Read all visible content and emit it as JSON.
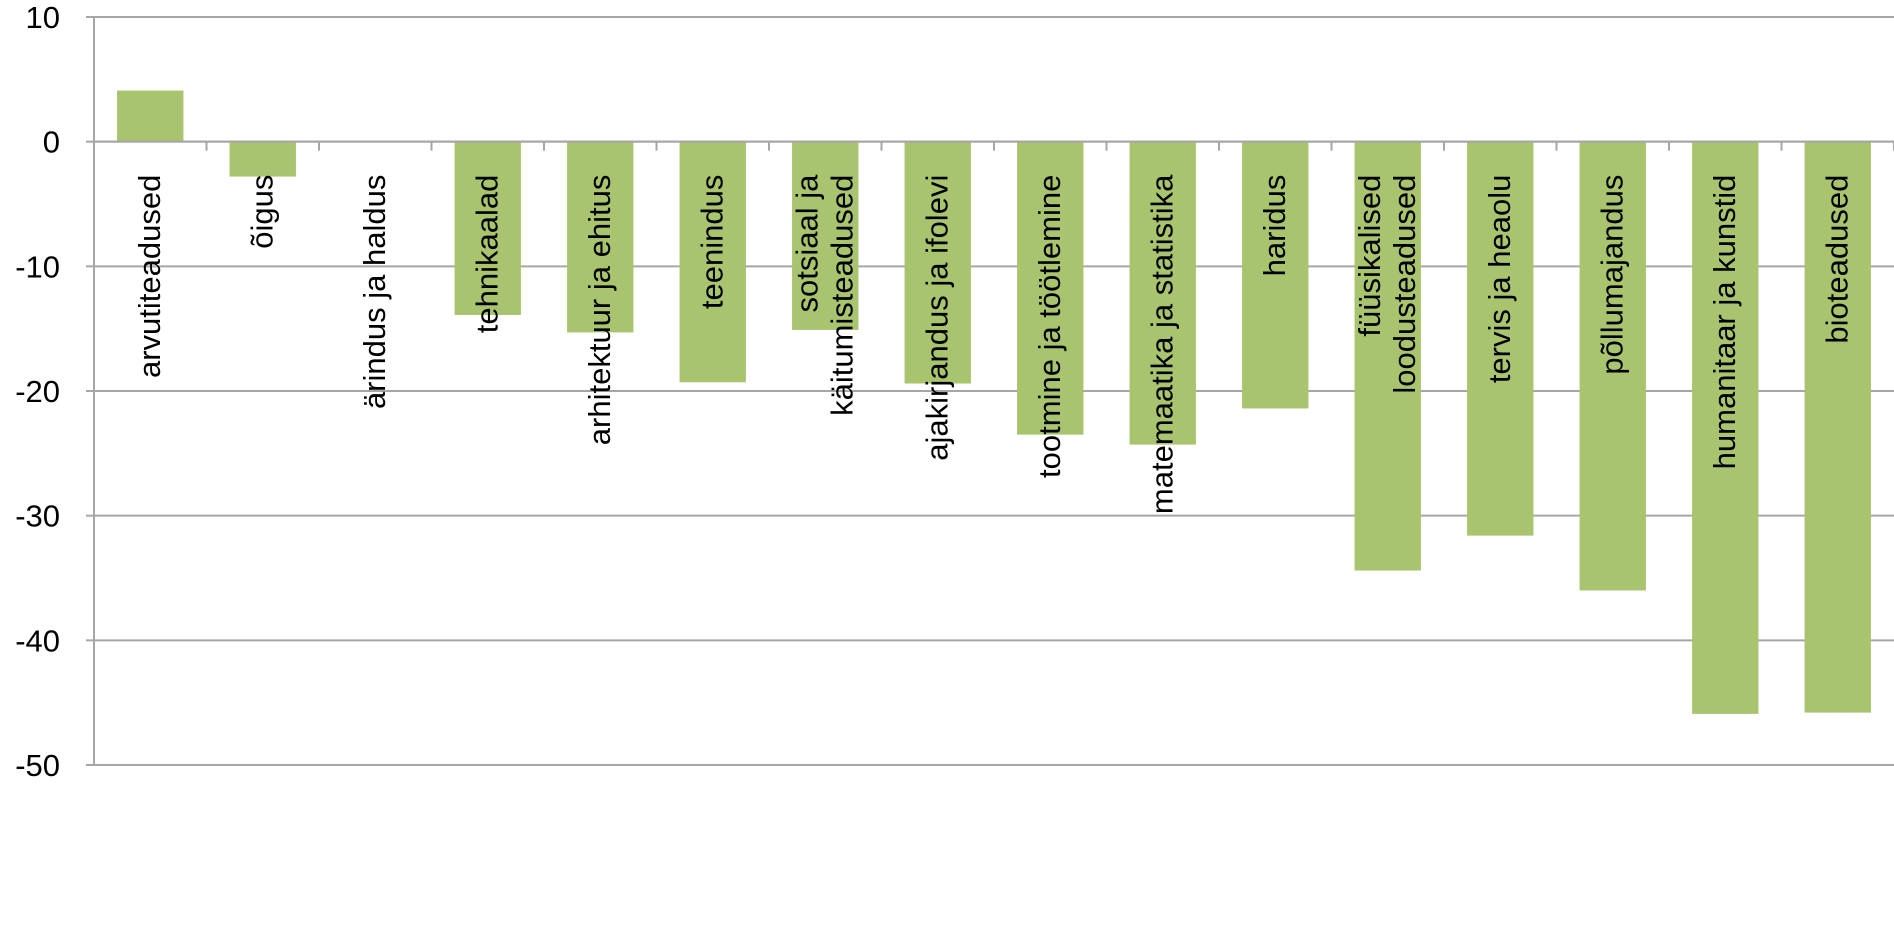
{
  "chart_data": {
    "type": "bar",
    "categories": [
      [
        "arvutiteadused"
      ],
      [
        "õigus"
      ],
      [
        "ärindus ja haldus"
      ],
      [
        "tehnikaalad"
      ],
      [
        "arhitektuur ja ehitus"
      ],
      [
        "teenindus"
      ],
      [
        "sotsiaal ja",
        "käitumisteadused"
      ],
      [
        "ajakirjandus ja ifolevi"
      ],
      [
        "tootmine ja töötlemine"
      ],
      [
        "matemaatika ja statistika"
      ],
      [
        "haridus"
      ],
      [
        "füüsikalised",
        "loodusteadused"
      ],
      [
        "tervis ja heaolu"
      ],
      [
        "põllumajandus"
      ],
      [
        "humanitaar ja kunstid"
      ],
      [
        "bioteadused"
      ]
    ],
    "values": [
      4.1,
      -2.8,
      0,
      -13.9,
      -15.3,
      -19.3,
      -15.1,
      -19.4,
      -23.5,
      -24.3,
      -21.4,
      -34.4,
      -31.6,
      -36.0,
      -45.9,
      -45.8
    ],
    "ylim": [
      -50,
      10
    ],
    "yticks": [
      10,
      0,
      -10,
      -20,
      -30,
      -40,
      -50
    ],
    "grid": true,
    "bar_color": "#A9C46E",
    "grid_color": "#A6A6A6",
    "title": "",
    "xlabel": "",
    "ylabel": ""
  }
}
